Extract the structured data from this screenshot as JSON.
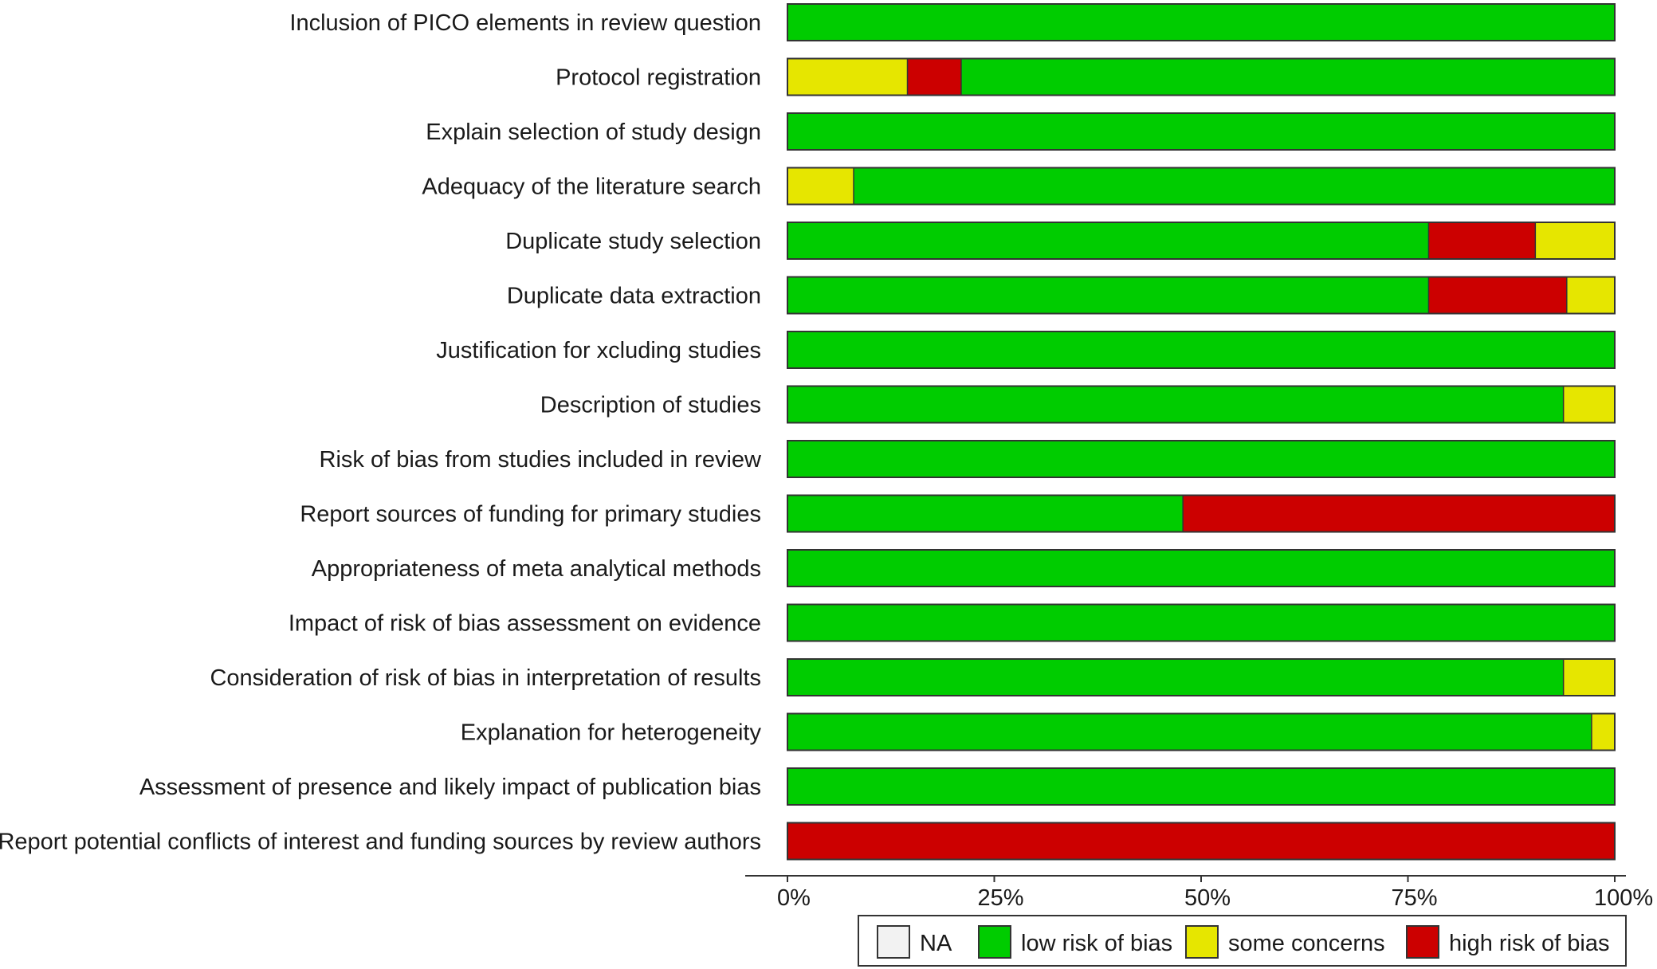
{
  "chart_data": {
    "type": "bar",
    "orientation": "horizontal",
    "stacked": true,
    "title": "",
    "xlabel": "",
    "ylabel": "",
    "xlim": [
      0,
      100
    ],
    "x_ticks": [
      "0%",
      "25%",
      "50%",
      "75%",
      "100%"
    ],
    "grid": false,
    "legend_position": "bottom-right",
    "legend": [
      {
        "key": "na",
        "label": "NA",
        "color": "#f2f2f2"
      },
      {
        "key": "low",
        "label": "low risk of bias",
        "color": "#00cc00"
      },
      {
        "key": "some",
        "label": "some concerns",
        "color": "#e6e600"
      },
      {
        "key": "high",
        "label": "high risk of bias",
        "color": "#cc0000"
      }
    ],
    "categories": [
      "Inclusion of PICO elements in review question",
      "Protocol registration",
      "Explain selection of study design",
      "Adequacy of the literature search",
      "Duplicate study selection",
      "Duplicate data extraction",
      "Justification for xcluding studies",
      "Description of studies",
      "Risk of bias from studies included in review",
      "Report sources of funding for primary studies",
      "Appropriateness of meta analytical methods",
      "Impact of risk of bias assessment on evidence",
      "Consideration of risk of bias in interpretation of results",
      "Explanation for heterogeneity",
      "Assessment of presence and likely impact of publication bias",
      "Report potential conflicts of interest and funding sources by review authors"
    ],
    "bars": [
      [
        {
          "key": "low",
          "value": 100
        }
      ],
      [
        {
          "key": "some",
          "value": 14.5
        },
        {
          "key": "high",
          "value": 6.5
        },
        {
          "key": "low",
          "value": 79
        }
      ],
      [
        {
          "key": "low",
          "value": 100
        }
      ],
      [
        {
          "key": "some",
          "value": 8
        },
        {
          "key": "low",
          "value": 92
        }
      ],
      [
        {
          "key": "low",
          "value": 77.5
        },
        {
          "key": "high",
          "value": 12.9
        },
        {
          "key": "some",
          "value": 9.6
        }
      ],
      [
        {
          "key": "low",
          "value": 77.5
        },
        {
          "key": "high",
          "value": 16.7
        },
        {
          "key": "some",
          "value": 5.8
        }
      ],
      [
        {
          "key": "low",
          "value": 100
        }
      ],
      [
        {
          "key": "low",
          "value": 93.8
        },
        {
          "key": "some",
          "value": 6.2
        }
      ],
      [
        {
          "key": "low",
          "value": 100
        }
      ],
      [
        {
          "key": "low",
          "value": 47.8
        },
        {
          "key": "high",
          "value": 52.2
        }
      ],
      [
        {
          "key": "low",
          "value": 100
        }
      ],
      [
        {
          "key": "low",
          "value": 100
        }
      ],
      [
        {
          "key": "low",
          "value": 93.8
        },
        {
          "key": "some",
          "value": 6.2
        }
      ],
      [
        {
          "key": "low",
          "value": 97.2
        },
        {
          "key": "some",
          "value": 2.8
        }
      ],
      [
        {
          "key": "low",
          "value": 100
        }
      ],
      [
        {
          "key": "high",
          "value": 100
        }
      ]
    ]
  }
}
